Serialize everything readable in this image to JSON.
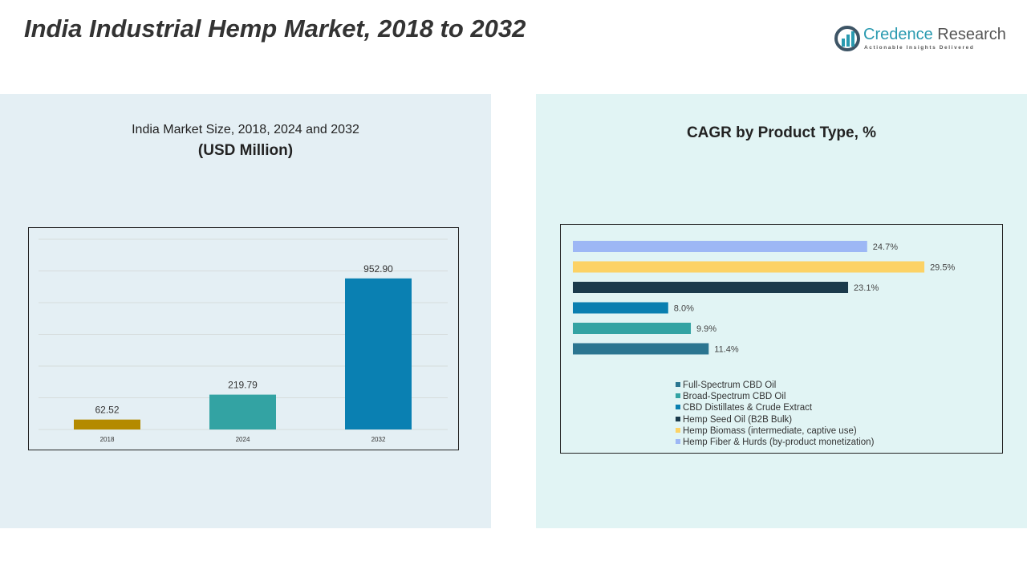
{
  "title": "India Industrial Hemp Market, 2018 to 2032",
  "logo": {
    "brand1": "Credence",
    "brand2": " Research",
    "tagline": "Actionable Insights Delivered"
  },
  "chart_data": [
    {
      "type": "bar",
      "title": "India Market Size, 2018, 2024 and 2032",
      "subtitle": "(USD Million)",
      "categories": [
        "2018",
        "2024",
        "2032"
      ],
      "values": [
        62.52,
        219.79,
        952.9
      ],
      "value_labels": [
        "62.52",
        "219.79",
        "952.90"
      ],
      "ylim": [
        0,
        1200
      ],
      "grid": true,
      "colors": [
        "#b48a00",
        "#33a3a3",
        "#0a80b2"
      ]
    },
    {
      "type": "bar",
      "orientation": "horizontal",
      "title": "CAGR by Product Type, %",
      "categories": [
        "Hemp Fiber & Hurds (by-product monetization)",
        "Hemp Biomass (intermediate, captive use)",
        "Hemp Seed Oil (B2B Bulk)",
        "CBD Distillates & Crude Extract",
        "Broad-Spectrum CBD Oil",
        "Full-Spectrum CBD Oil"
      ],
      "values": [
        24.7,
        29.5,
        23.1,
        8.0,
        9.9,
        11.4
      ],
      "value_labels": [
        "24.7%",
        "29.5%",
        "23.1%",
        "8.0%",
        "9.9%",
        "11.4%"
      ],
      "colors": [
        "#9db7f5",
        "#fcd265",
        "#1b3a4b",
        "#0a7fb0",
        "#33a3a3",
        "#2b7590"
      ],
      "legend": [
        "Full-Spectrum CBD Oil",
        "Broad-Spectrum CBD Oil",
        "CBD Distillates & Crude Extract",
        "Hemp Seed Oil (B2B Bulk)",
        "Hemp Biomass (intermediate, captive use)",
        "Hemp Fiber & Hurds (by-product monetization)"
      ],
      "legend_colors": [
        "#2b7590",
        "#33a3a3",
        "#0a7fb0",
        "#1b3a4b",
        "#fcd265",
        "#9db7f5"
      ],
      "legend_position": "bottom"
    }
  ]
}
